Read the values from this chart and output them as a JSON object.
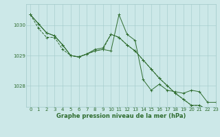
{
  "title": "Graphe pression niveau de la mer (hPa)",
  "bg_color": "#cce8e8",
  "line_color": "#2d6b2d",
  "grid_color": "#a0c8c8",
  "ylim": [
    1027.3,
    1030.7
  ],
  "xlim": [
    -0.5,
    23
  ],
  "yticks": [
    1028,
    1029,
    1030
  ],
  "xticks": [
    0,
    1,
    2,
    3,
    4,
    5,
    6,
    7,
    8,
    9,
    10,
    11,
    12,
    13,
    14,
    15,
    16,
    17,
    18,
    19,
    20,
    21,
    22,
    23
  ],
  "series1": [
    1030.35,
    1030.05,
    1029.75,
    1029.65,
    1029.35,
    1029.0,
    1028.95,
    1029.05,
    1029.15,
    1029.2,
    1029.15,
    1030.35,
    1029.7,
    1029.5,
    1028.2,
    1027.85,
    1028.05,
    1027.85,
    1027.8,
    1027.75,
    1027.85,
    1027.8,
    1027.45,
    1027.45
  ],
  "series2": [
    1030.35,
    1030.05,
    1029.75,
    1029.65,
    1029.35,
    1029.0,
    1028.95,
    1029.05,
    1029.2,
    1029.25,
    1029.7,
    1029.6,
    1029.35,
    1029.15,
    1028.85,
    1028.55,
    1028.25,
    1028.0,
    1027.75,
    1027.55,
    1027.35,
    1027.35,
    1027.2,
    1027.2
  ],
  "series3": [
    1030.35,
    1029.9,
    1029.6,
    1029.6,
    1029.2,
    1029.0,
    1028.95,
    1029.05,
    1029.15,
    1029.2,
    1029.7,
    1029.6,
    1029.35,
    1029.15,
    1028.85,
    1028.55,
    1028.25,
    1028.0,
    1027.75,
    1027.55,
    1027.35,
    1027.35,
    1027.2,
    1027.2
  ],
  "label_fontsize": 5.0,
  "tick_fontsize": 5.0,
  "xlabel_fontsize": 6.0,
  "linewidth": 0.7,
  "markersize": 2.5
}
